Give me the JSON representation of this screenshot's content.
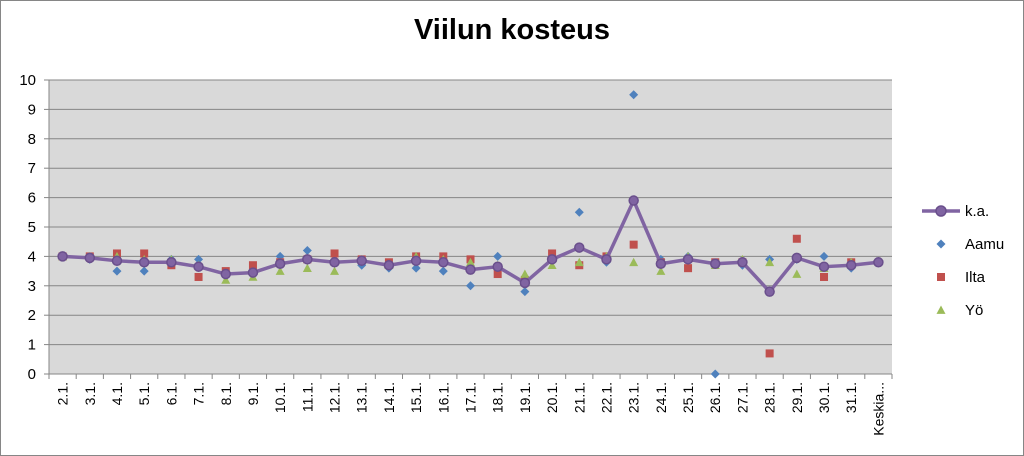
{
  "chart_data": {
    "type": "line",
    "title": "Viilun kosteus",
    "xlabel": "",
    "ylabel": "",
    "ylim": [
      0,
      10
    ],
    "yticks": [
      0,
      1,
      2,
      3,
      4,
      5,
      6,
      7,
      8,
      9,
      10
    ],
    "grid": true,
    "legend_position": "right",
    "categories": [
      "2.1.",
      "3.1.",
      "4.1.",
      "5.1.",
      "6.1.",
      "7.1.",
      "8.1.",
      "9.1.",
      "10.1.",
      "11.1.",
      "12.1.",
      "13.1.",
      "14.1.",
      "15.1.",
      "16.1.",
      "17.1.",
      "18.1.",
      "19.1.",
      "20.1.",
      "21.1.",
      "22.1.",
      "23.1.",
      "24.1.",
      "25.1.",
      "26.1.",
      "27.1.",
      "28.1.",
      "29.1.",
      "30.1.",
      "31.1.",
      "Keskia..."
    ],
    "series": [
      {
        "name": "k.a.",
        "style": "line-marker",
        "color": "#8064A2",
        "values": [
          4.0,
          3.95,
          3.85,
          3.8,
          3.8,
          3.65,
          3.4,
          3.45,
          3.75,
          3.9,
          3.8,
          3.85,
          3.7,
          3.85,
          3.8,
          3.55,
          3.65,
          3.1,
          3.9,
          4.3,
          3.9,
          5.9,
          3.75,
          3.9,
          3.75,
          3.8,
          2.8,
          3.95,
          3.65,
          3.7,
          3.8
        ]
      },
      {
        "name": "Aamu",
        "style": "diamond",
        "color": "#4F81BD",
        "values": [
          4.0,
          3.9,
          3.5,
          3.5,
          3.9,
          3.9,
          3.4,
          3.4,
          4.0,
          4.2,
          3.8,
          3.7,
          3.6,
          3.6,
          3.5,
          3.0,
          4.0,
          2.8,
          3.9,
          5.5,
          3.8,
          9.5,
          3.9,
          4.0,
          0.0,
          3.7,
          3.9,
          3.9,
          4.0,
          3.6,
          null
        ]
      },
      {
        "name": "Ilta",
        "style": "square",
        "color": "#C0504D",
        "values": [
          4.0,
          4.0,
          4.1,
          4.1,
          3.7,
          3.3,
          3.5,
          3.7,
          3.8,
          3.9,
          4.1,
          3.9,
          3.8,
          4.0,
          4.0,
          3.9,
          3.4,
          3.2,
          4.1,
          3.7,
          4.0,
          4.4,
          3.8,
          3.6,
          3.8,
          3.8,
          0.7,
          4.6,
          3.3,
          3.8,
          null
        ]
      },
      {
        "name": "Yö",
        "style": "triangle",
        "color": "#9BBB59",
        "values": [
          4.0,
          4.0,
          4.0,
          3.9,
          3.9,
          3.7,
          3.2,
          3.3,
          3.5,
          3.6,
          3.5,
          3.9,
          3.7,
          4.0,
          3.9,
          3.8,
          3.7,
          3.4,
          3.7,
          3.8,
          4.0,
          3.8,
          3.5,
          4.0,
          3.7,
          3.9,
          3.8,
          3.4,
          3.6,
          3.8,
          null
        ]
      }
    ]
  }
}
